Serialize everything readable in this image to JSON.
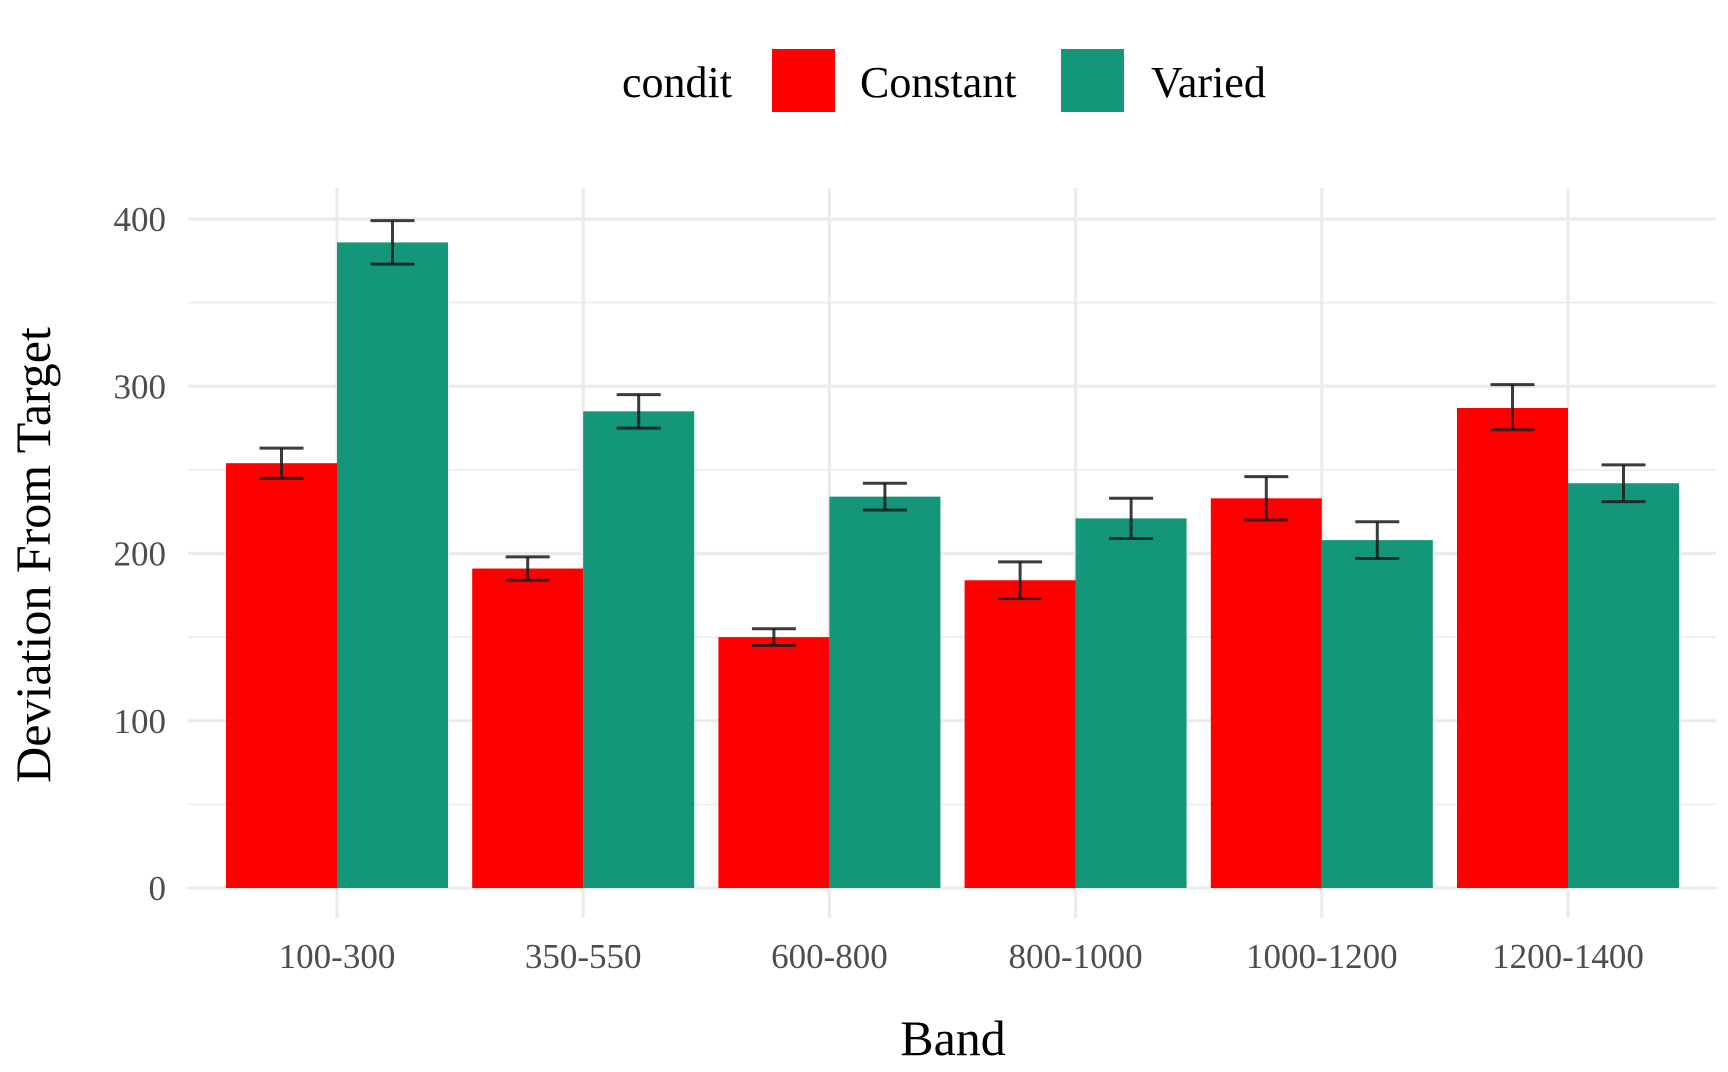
{
  "chart_data": {
    "type": "bar",
    "xlabel": "Band",
    "ylabel": "Deviation From Target",
    "categories": [
      "100-300",
      "350-550",
      "600-800",
      "800-1000",
      "1000-1200",
      "1200-1400"
    ],
    "y_ticks": [
      0,
      100,
      200,
      300,
      400
    ],
    "y_tick_labels": [
      "0",
      "100",
      "200",
      "300",
      "400"
    ],
    "ylim": [
      0,
      410
    ],
    "grid": true,
    "legend": {
      "title": "condit",
      "position": "top"
    },
    "series": [
      {
        "name": "Constant",
        "color": "#ff0000",
        "values": [
          254,
          191,
          150,
          184,
          233,
          287
        ],
        "error_low": [
          245,
          184,
          145,
          173,
          220,
          274
        ],
        "error_high": [
          263,
          198,
          155,
          195,
          246,
          301
        ]
      },
      {
        "name": "Varied",
        "color": "#13967a",
        "values": [
          386,
          285,
          234,
          221,
          208,
          242
        ],
        "error_low": [
          373,
          275,
          226,
          209,
          197,
          231
        ],
        "error_high": [
          399,
          295,
          242,
          233,
          219,
          253
        ]
      }
    ]
  }
}
